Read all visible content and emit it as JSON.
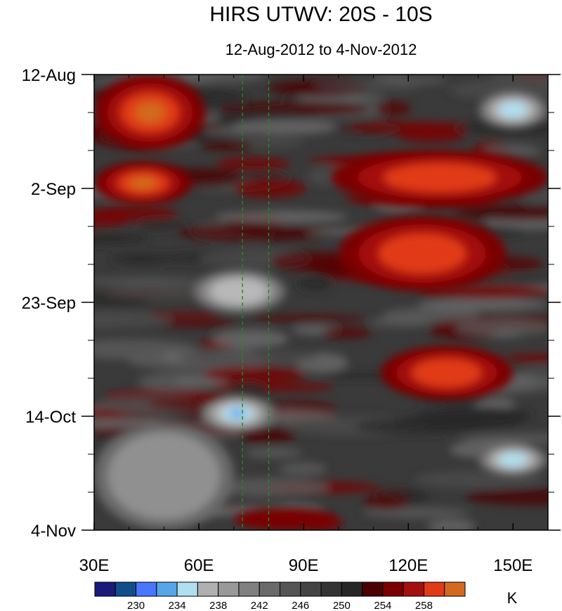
{
  "chart_data": {
    "type": "heatmap",
    "title": "HIRS UTWV: 20S - 10S",
    "subtitle": "12-Aug-2012 to 4-Nov-2012",
    "xlabel": "",
    "ylabel": "",
    "x_range": [
      30,
      160
    ],
    "y_range_days": [
      0,
      84
    ],
    "x_ticks": [
      {
        "value": 30,
        "label": "30E"
      },
      {
        "value": 60,
        "label": "60E"
      },
      {
        "value": 90,
        "label": "90E"
      },
      {
        "value": 120,
        "label": "120E"
      },
      {
        "value": 150,
        "label": "150E"
      }
    ],
    "y_ticks": [
      {
        "day": 0,
        "label": "12-Aug"
      },
      {
        "day": 21,
        "label": "2-Sep"
      },
      {
        "day": 42,
        "label": "23-Sep"
      },
      {
        "day": 63,
        "label": "14-Oct"
      },
      {
        "day": 84,
        "label": "4-Nov"
      }
    ],
    "reference_lines_lon": [
      72.5,
      80
    ],
    "reference_line_color": "#228b22",
    "colorbar": {
      "unit": "K",
      "colors": [
        "#1a1a7a",
        "#104e8b",
        "#4876ff",
        "#56a5e8",
        "#b0dff0",
        "#b0b0b0",
        "#999999",
        "#808080",
        "#6a6a6a",
        "#555555",
        "#444444",
        "#333333",
        "#262626",
        "#4a0000",
        "#7a0000",
        "#a50f0f",
        "#e03a17",
        "#d2691e"
      ],
      "labels": [
        {
          "after_index": 1,
          "text": "230"
        },
        {
          "after_index": 3,
          "text": "234"
        },
        {
          "after_index": 5,
          "text": "238"
        },
        {
          "after_index": 7,
          "text": "242"
        },
        {
          "after_index": 9,
          "text": "246"
        },
        {
          "after_index": 11,
          "text": "250"
        },
        {
          "after_index": 13,
          "text": "254"
        },
        {
          "after_index": 15,
          "text": "258"
        }
      ]
    },
    "regions": [
      {
        "band": "warm",
        "lon": [
          30,
          62
        ],
        "days": [
          0,
          14
        ],
        "peak_K": 259
      },
      {
        "band": "warm",
        "lon": [
          30,
          58
        ],
        "days": [
          16,
          24
        ],
        "peak_K": 259
      },
      {
        "band": "warm",
        "lon": [
          98,
          160
        ],
        "days": [
          14,
          24
        ],
        "peak_K": 258
      },
      {
        "band": "warm",
        "lon": [
          100,
          148
        ],
        "days": [
          26,
          40
        ],
        "peak_K": 258
      },
      {
        "band": "warm",
        "lon": [
          112,
          150
        ],
        "days": [
          50,
          60
        ],
        "peak_K": 258
      },
      {
        "band": "warm",
        "lon": [
          70,
          100
        ],
        "days": [
          80,
          84
        ],
        "peak_K": 254
      },
      {
        "band": "moist",
        "lon": [
          58,
          85
        ],
        "days": [
          36,
          44
        ],
        "peak_K": 238
      },
      {
        "band": "moist",
        "lon": [
          60,
          82
        ],
        "days": [
          59,
          66
        ],
        "peak_K": 233
      },
      {
        "band": "moist",
        "lon": [
          140,
          160
        ],
        "days": [
          3,
          10
        ],
        "peak_K": 236
      },
      {
        "band": "moist",
        "lon": [
          140,
          160
        ],
        "days": [
          68,
          74
        ],
        "peak_K": 236
      },
      {
        "band": "moist",
        "lon": [
          30,
          70
        ],
        "days": [
          64,
          84
        ],
        "peak_K": 240
      }
    ]
  }
}
